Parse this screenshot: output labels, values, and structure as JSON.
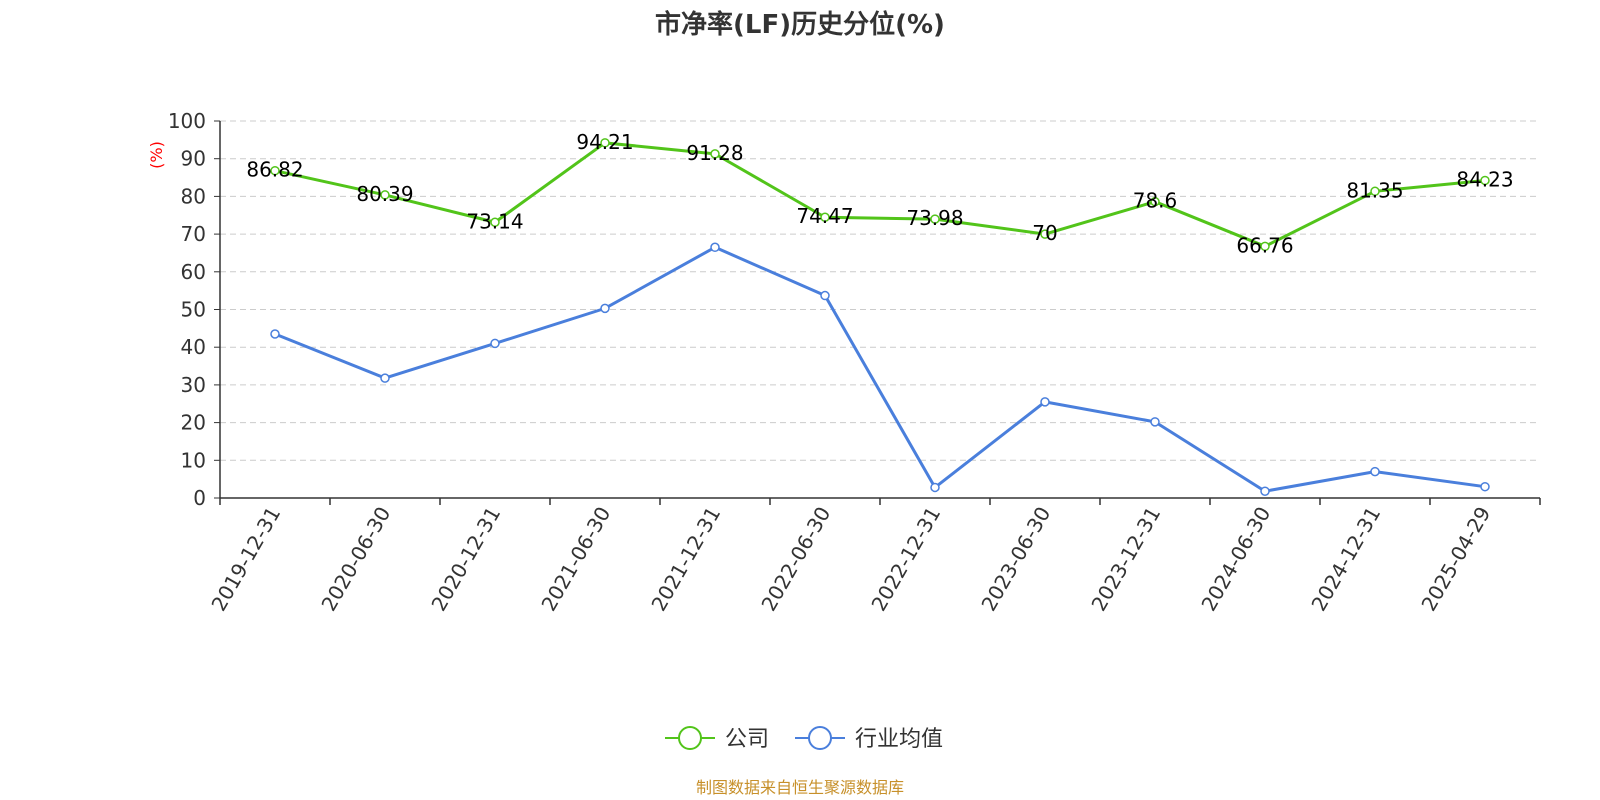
{
  "chart_data": {
    "type": "line",
    "title": "市净率(LF)历史分位(%)",
    "ylabel": "(%)",
    "xlabel": "",
    "categories": [
      "2019-12-31",
      "2020-06-30",
      "2020-12-31",
      "2021-06-30",
      "2021-12-31",
      "2022-06-30",
      "2022-12-31",
      "2023-06-30",
      "2023-12-31",
      "2024-06-30",
      "2024-12-31",
      "2025-04-29"
    ],
    "ylim": [
      0,
      100
    ],
    "yticks": [
      0,
      10,
      20,
      30,
      40,
      50,
      60,
      70,
      80,
      90,
      100
    ],
    "grid": true,
    "legend_position": "bottom-center",
    "series": [
      {
        "name": "公司",
        "color": "#52c41a",
        "values": [
          86.82,
          80.39,
          73.14,
          94.21,
          91.28,
          74.47,
          73.98,
          70,
          78.6,
          66.76,
          81.35,
          84.23
        ],
        "labels": [
          "86.82",
          "80.39",
          "73.14",
          "94.21",
          "91.28",
          "74.47",
          "73.98",
          "70",
          "78.6",
          "66.76",
          "81.35",
          "84.23"
        ],
        "show_labels": true
      },
      {
        "name": "行业均值",
        "color": "#4a7fdc",
        "values": [
          43.5,
          31.8,
          41,
          50.3,
          66.5,
          53.7,
          2.8,
          25.5,
          20.2,
          1.8,
          7,
          3
        ],
        "show_labels": false
      }
    ]
  },
  "source": "制图数据来自恒生聚源数据库"
}
